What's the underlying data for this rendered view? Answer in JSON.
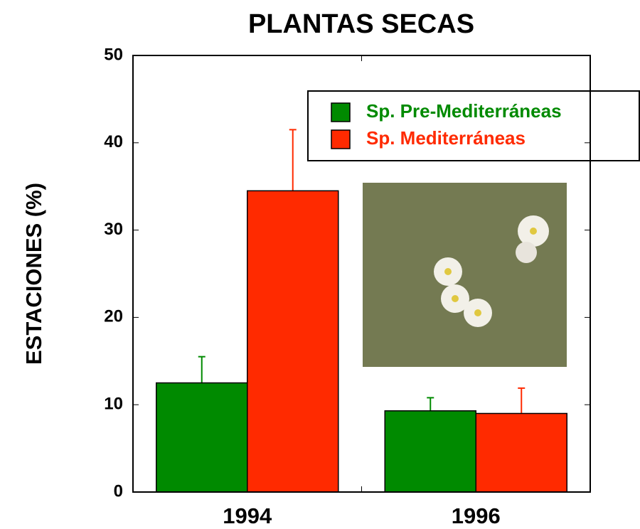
{
  "chart_data": {
    "type": "bar",
    "title": "PLANTAS SECAS",
    "y_label": "ESTACIONES (%)",
    "categories": [
      "1994",
      "1996"
    ],
    "series": [
      {
        "name": "Sp. Pre-Mediterráneas",
        "color": "#008a00",
        "values": [
          12.5,
          9.3
        ],
        "errors": [
          3,
          1.5
        ]
      },
      {
        "name": "Sp. Mediterráneas",
        "color": "#ff2a00",
        "values": [
          34.5,
          9.0
        ],
        "errors": [
          7,
          2.9
        ]
      }
    ],
    "ylim": [
      0,
      50
    ],
    "yticks": [
      0,
      10,
      20,
      30,
      40,
      50
    ]
  }
}
